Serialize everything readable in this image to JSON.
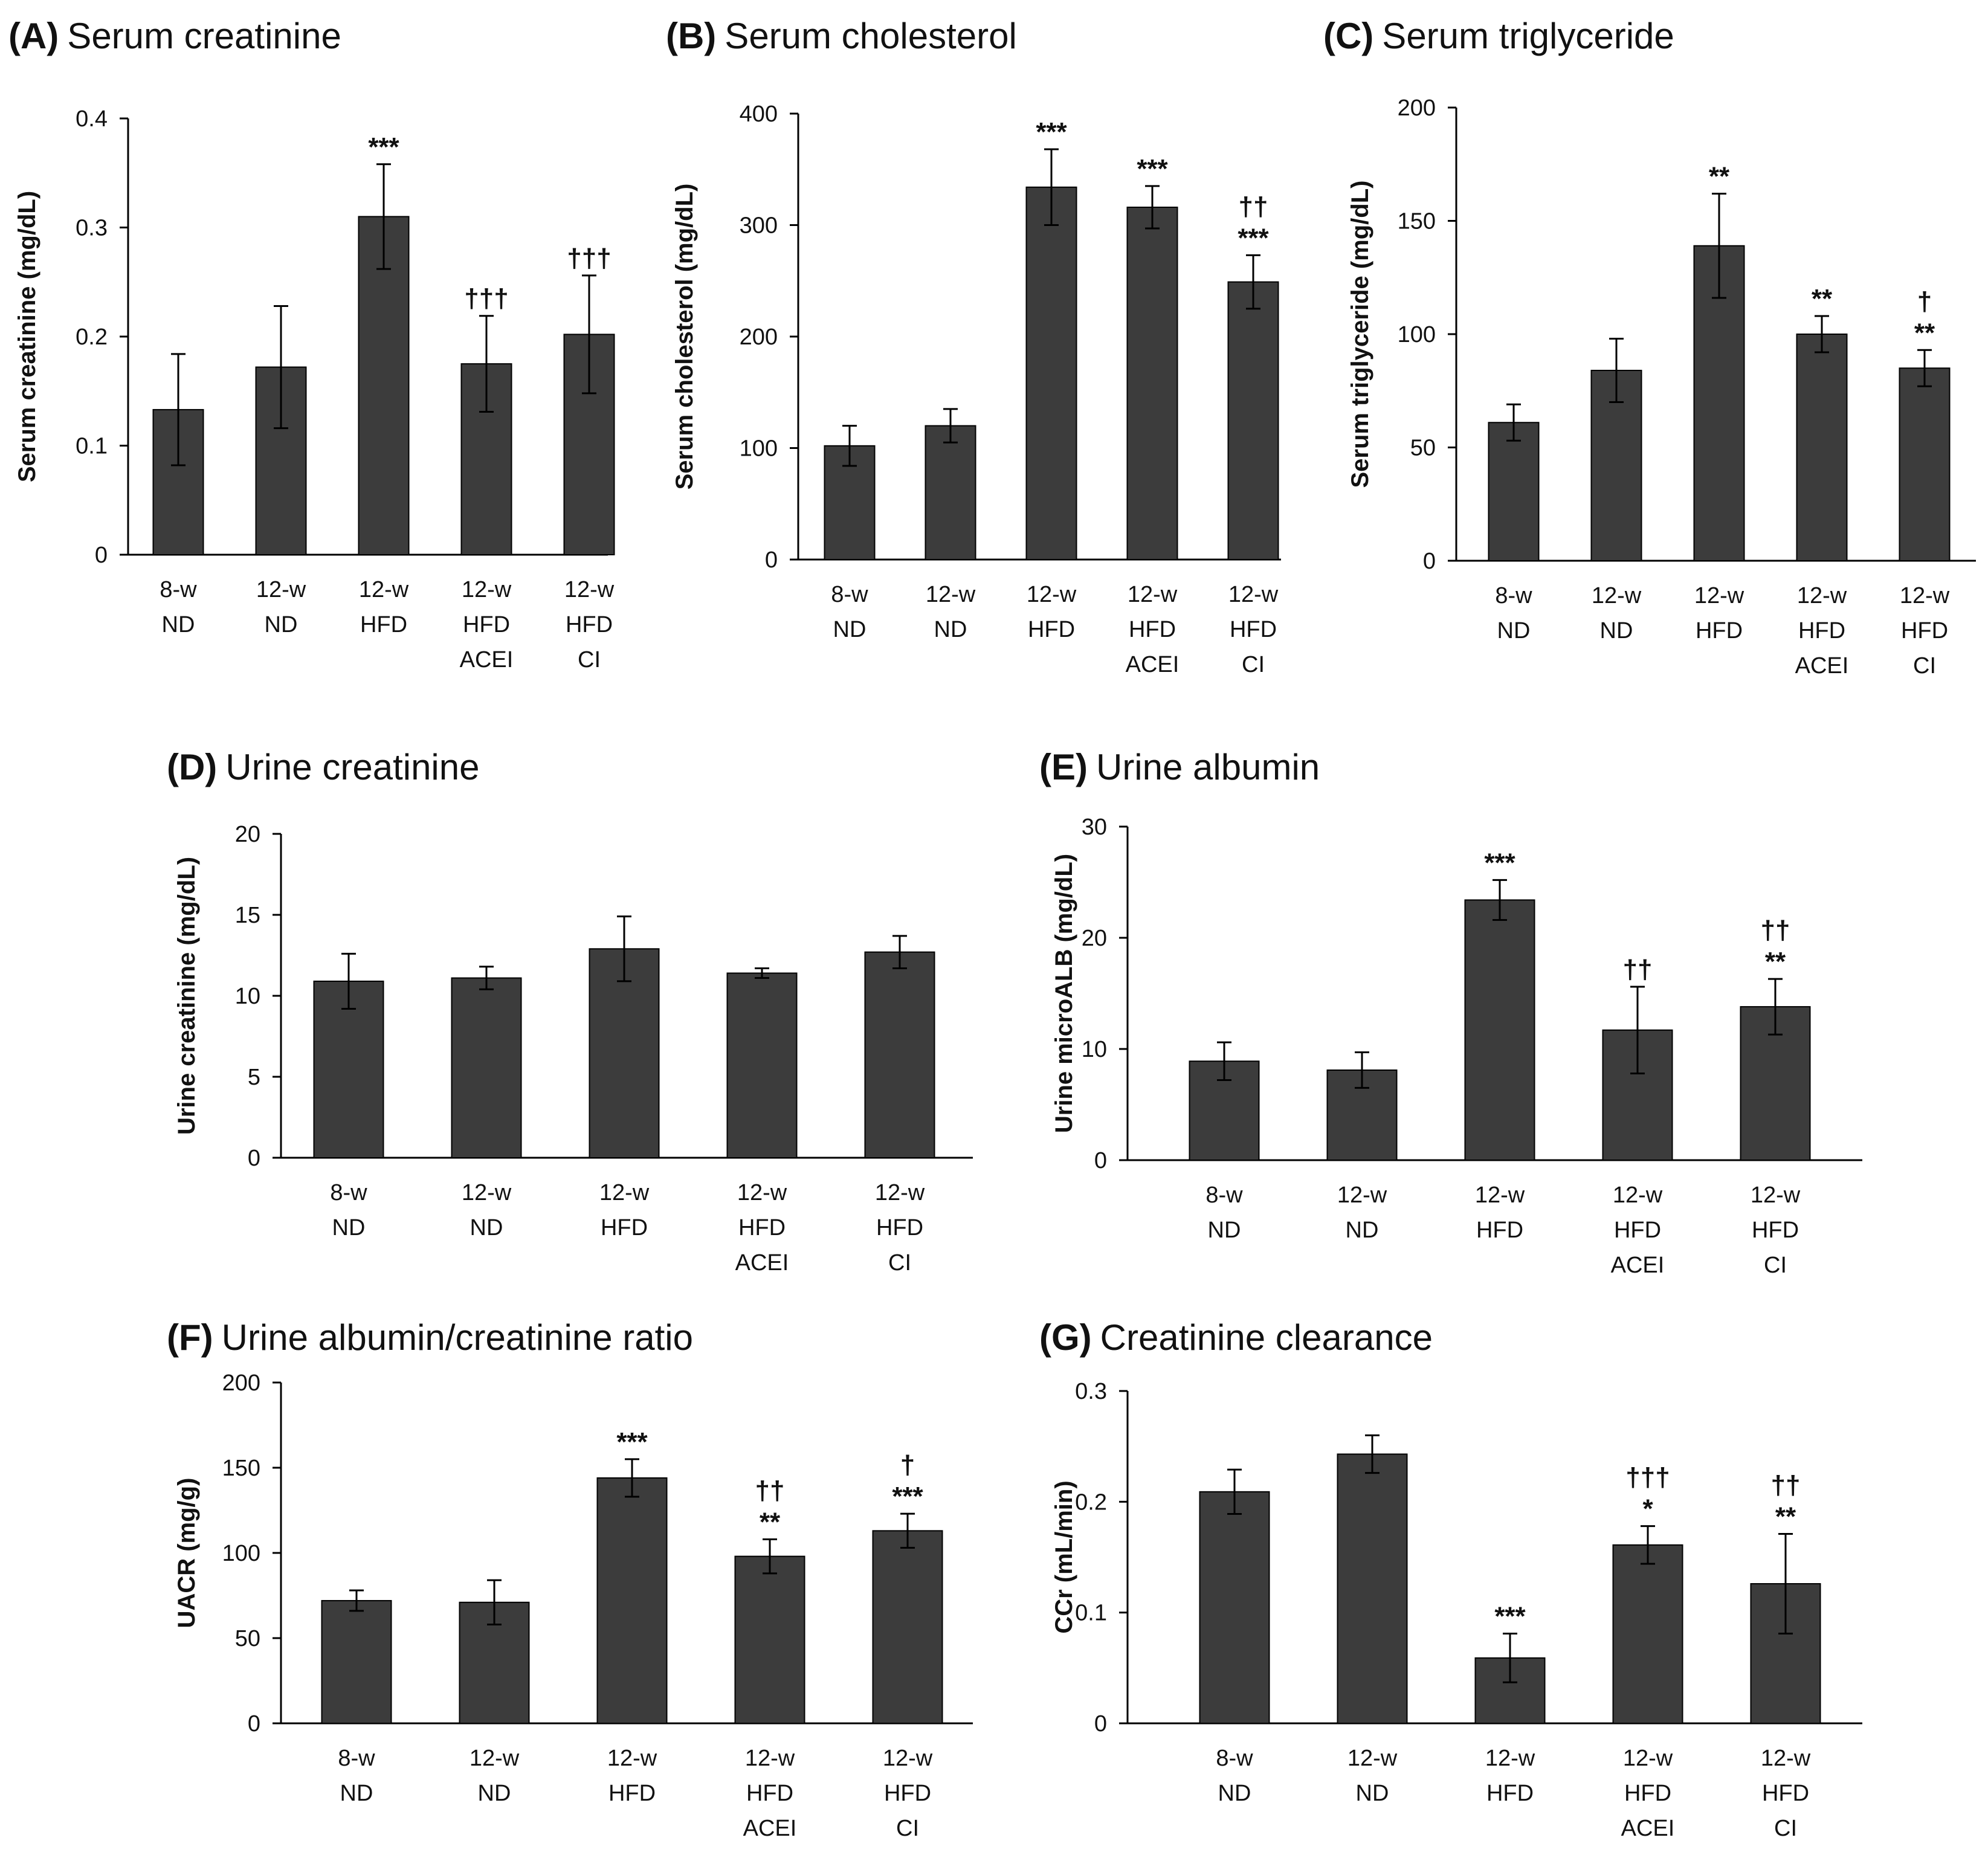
{
  "chart_data": [
    {
      "id": "A",
      "type": "bar",
      "label": "(A)",
      "title": "Serum creatinine",
      "ylabel": "Serum creatinine (mg/dL)",
      "ylim": [
        0,
        0.4
      ],
      "yticks": [
        0,
        0.1,
        0.2,
        0.3,
        0.4
      ],
      "ytick_labels": [
        "0",
        "0.1",
        "0.2",
        "0.3",
        "0.4"
      ],
      "categories": [
        [
          "8-w",
          "ND"
        ],
        [
          "12-w",
          "ND"
        ],
        [
          "12-w",
          "HFD"
        ],
        [
          "12-w",
          "HFD",
          "ACEI"
        ],
        [
          "12-w",
          "HFD",
          "CI"
        ]
      ],
      "values": [
        0.133,
        0.172,
        0.31,
        0.175,
        0.202
      ],
      "errors": [
        0.051,
        0.056,
        0.048,
        0.044,
        0.054
      ],
      "annotations": [
        [],
        [],
        [
          "***"
        ],
        [
          "†††"
        ],
        [
          "†††"
        ]
      ]
    },
    {
      "id": "B",
      "type": "bar",
      "label": "(B)",
      "title": "Serum cholesterol",
      "ylabel": "Serum cholesterol (mg/dL)",
      "ylim": [
        0,
        400
      ],
      "yticks": [
        0,
        100,
        200,
        300,
        400
      ],
      "ytick_labels": [
        "0",
        "100",
        "200",
        "300",
        "400"
      ],
      "categories": [
        [
          "8-w",
          "ND"
        ],
        [
          "12-w",
          "ND"
        ],
        [
          "12-w",
          "HFD"
        ],
        [
          "12-w",
          "HFD",
          "ACEI"
        ],
        [
          "12-w",
          "HFD",
          "CI"
        ]
      ],
      "values": [
        102,
        120,
        334,
        316,
        249
      ],
      "errors": [
        18,
        15,
        34,
        19,
        24
      ],
      "annotations": [
        [],
        [],
        [
          "***"
        ],
        [
          "***"
        ],
        [
          "††",
          "***"
        ]
      ]
    },
    {
      "id": "C",
      "type": "bar",
      "label": "(C)",
      "title": "Serum triglyceride",
      "ylabel": "Serum triglyceride (mg/dL)",
      "ylim": [
        0,
        200
      ],
      "yticks": [
        0,
        50,
        100,
        150,
        200
      ],
      "ytick_labels": [
        "0",
        "50",
        "100",
        "150",
        "200"
      ],
      "categories": [
        [
          "8-w",
          "ND"
        ],
        [
          "12-w",
          "ND"
        ],
        [
          "12-w",
          "HFD"
        ],
        [
          "12-w",
          "HFD",
          "ACEI"
        ],
        [
          "12-w",
          "HFD",
          "CI"
        ]
      ],
      "values": [
        61,
        84,
        139,
        100,
        85
      ],
      "errors": [
        8,
        14,
        23,
        8,
        8
      ],
      "annotations": [
        [],
        [],
        [
          "**"
        ],
        [
          "**"
        ],
        [
          "†",
          "**"
        ]
      ]
    },
    {
      "id": "D",
      "type": "bar",
      "label": "(D)",
      "title": "Urine creatinine",
      "ylabel": "Urine creatinine (mg/dL)",
      "ylim": [
        0,
        20
      ],
      "yticks": [
        0,
        5,
        10,
        15,
        20
      ],
      "ytick_labels": [
        "0",
        "5",
        "10",
        "15",
        "20"
      ],
      "categories": [
        [
          "8-w",
          "ND"
        ],
        [
          "12-w",
          "ND"
        ],
        [
          "12-w",
          "HFD"
        ],
        [
          "12-w",
          "HFD",
          "ACEI"
        ],
        [
          "12-w",
          "HFD",
          "CI"
        ]
      ],
      "values": [
        10.9,
        11.1,
        12.9,
        11.4,
        12.7
      ],
      "errors": [
        1.7,
        0.7,
        2.0,
        0.3,
        1.0
      ],
      "annotations": [
        [],
        [],
        [],
        [],
        []
      ]
    },
    {
      "id": "E",
      "type": "bar",
      "label": "(E)",
      "title": "Urine albumin",
      "ylabel": "Urine microALB (mg/dL)",
      "ylim": [
        0,
        30
      ],
      "yticks": [
        0,
        10,
        20,
        30
      ],
      "ytick_labels": [
        "0",
        "10",
        "20",
        "30"
      ],
      "categories": [
        [
          "8-w",
          "ND"
        ],
        [
          "12-w",
          "ND"
        ],
        [
          "12-w",
          "HFD"
        ],
        [
          "12-w",
          "HFD",
          "ACEI"
        ],
        [
          "12-w",
          "HFD",
          "CI"
        ]
      ],
      "values": [
        8.9,
        8.1,
        23.4,
        11.7,
        13.8
      ],
      "errors": [
        1.7,
        1.6,
        1.8,
        3.9,
        2.5
      ],
      "annotations": [
        [],
        [],
        [
          "***"
        ],
        [
          "††"
        ],
        [
          "††",
          "**"
        ]
      ]
    },
    {
      "id": "F",
      "type": "bar",
      "label": "(F)",
      "title": "Urine albumin/creatinine ratio",
      "ylabel": "UACR (mg/g)",
      "ylim": [
        0,
        200
      ],
      "yticks": [
        0,
        50,
        100,
        150,
        200
      ],
      "ytick_labels": [
        "0",
        "50",
        "100",
        "150",
        "200"
      ],
      "categories": [
        [
          "8-w",
          "ND"
        ],
        [
          "12-w",
          "ND"
        ],
        [
          "12-w",
          "HFD"
        ],
        [
          "12-w",
          "HFD",
          "ACEI"
        ],
        [
          "12-w",
          "HFD",
          "CI"
        ]
      ],
      "values": [
        72,
        71,
        144,
        98,
        113
      ],
      "errors": [
        6,
        13,
        11,
        10,
        10
      ],
      "annotations": [
        [],
        [],
        [
          "***"
        ],
        [
          "††",
          "**"
        ],
        [
          "†",
          "***"
        ]
      ]
    },
    {
      "id": "G",
      "type": "bar",
      "label": "(G)",
      "title": "Creatinine clearance",
      "ylabel": "CCr (mL/min)",
      "ylim": [
        0,
        0.3
      ],
      "yticks": [
        0,
        0.1,
        0.2,
        0.3
      ],
      "ytick_labels": [
        "0",
        "0.1",
        "0.2",
        "0.3"
      ],
      "categories": [
        [
          "8-w",
          "ND"
        ],
        [
          "12-w",
          "ND"
        ],
        [
          "12-w",
          "HFD"
        ],
        [
          "12-w",
          "HFD",
          "ACEI"
        ],
        [
          "12-w",
          "HFD",
          "CI"
        ]
      ],
      "values": [
        0.209,
        0.243,
        0.059,
        0.161,
        0.126
      ],
      "errors": [
        0.02,
        0.017,
        0.022,
        0.017,
        0.045
      ],
      "annotations": [
        [],
        [],
        [
          "***"
        ],
        [
          "†††",
          "*"
        ],
        [
          "††",
          "**"
        ]
      ]
    }
  ]
}
